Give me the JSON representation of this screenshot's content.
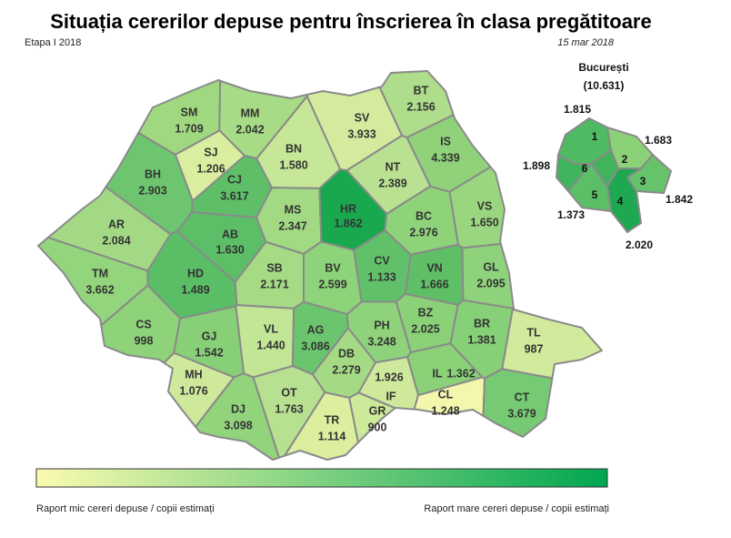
{
  "header": {
    "title": "Situația cererilor depuse pentru înscrierea în clasa pregătitoare",
    "stage": "Etapa I 2018",
    "date": "15 mar 2018"
  },
  "counties": [
    {
      "code": "SM",
      "value": "1.709",
      "color": "#9fd87f"
    },
    {
      "code": "MM",
      "value": "2.042",
      "color": "#a7db86"
    },
    {
      "code": "BT",
      "value": "2.156",
      "color": "#aedd8b"
    },
    {
      "code": "SV",
      "value": "3.933",
      "color": "#d4eb9e"
    },
    {
      "code": "SJ",
      "value": "1.206",
      "color": "#d9ee9f"
    },
    {
      "code": "BN",
      "value": "1.580",
      "color": "#c5e797"
    },
    {
      "code": "IS",
      "value": "4.339",
      "color": "#8fd27a"
    },
    {
      "code": "BH",
      "value": "2.903",
      "color": "#6dc66f"
    },
    {
      "code": "CJ",
      "value": "3.617",
      "color": "#5ebf68"
    },
    {
      "code": "NT",
      "value": "2.389",
      "color": "#b9e191"
    },
    {
      "code": "MS",
      "value": "2.347",
      "color": "#a2d983"
    },
    {
      "code": "HR",
      "value": "1.862",
      "color": "#19a84e"
    },
    {
      "code": "VS",
      "value": "1.650",
      "color": "#9ad67f"
    },
    {
      "code": "AR",
      "value": "2.084",
      "color": "#a3d984"
    },
    {
      "code": "AB",
      "value": "1.630",
      "color": "#5cbf68"
    },
    {
      "code": "BC",
      "value": "2.976",
      "color": "#8ed37a"
    },
    {
      "code": "TM",
      "value": "3.662",
      "color": "#93d57c"
    },
    {
      "code": "HD",
      "value": "1.489",
      "color": "#59be66"
    },
    {
      "code": "SB",
      "value": "2.171",
      "color": "#a6da85"
    },
    {
      "code": "BV",
      "value": "2.599",
      "color": "#8dd37a"
    },
    {
      "code": "CV",
      "value": "1.133",
      "color": "#61c16a"
    },
    {
      "code": "VN",
      "value": "1.666",
      "color": "#5ebf67"
    },
    {
      "code": "GL",
      "value": "2.095",
      "color": "#8ed27b"
    },
    {
      "code": "CS",
      "value": "998",
      "color": "#8ed37a"
    },
    {
      "code": "GJ",
      "value": "1.542",
      "color": "#88d077"
    },
    {
      "code": "VL",
      "value": "1.440",
      "color": "#c2e695"
    },
    {
      "code": "AG",
      "value": "3.086",
      "color": "#6bc56e"
    },
    {
      "code": "PH",
      "value": "3.248",
      "color": "#8ed27b"
    },
    {
      "code": "BZ",
      "value": "2.025",
      "color": "#8ad178"
    },
    {
      "code": "BR",
      "value": "1.381",
      "color": "#86d077"
    },
    {
      "code": "TL",
      "value": "987",
      "color": "#d1ea9c"
    },
    {
      "code": "MH",
      "value": "1.076",
      "color": "#cfe99c"
    },
    {
      "code": "DB",
      "value": "2.279",
      "color": "#a5da85"
    },
    {
      "code": "IL",
      "value": "1.362",
      "color": "#8ad178"
    },
    {
      "code": "IF",
      "value": "1.926",
      "color": "#cee99b"
    },
    {
      "code": "DJ",
      "value": "3.098",
      "color": "#92d47b"
    },
    {
      "code": "OT",
      "value": "1.763",
      "color": "#b7e090"
    },
    {
      "code": "TR",
      "value": "1.114",
      "color": "#dcef9f"
    },
    {
      "code": "GR",
      "value": "900",
      "color": "#cde99a"
    },
    {
      "code": "CL",
      "value": "1.248",
      "color": "#f2f7ad"
    },
    {
      "code": "CT",
      "value": "3.679",
      "color": "#76ca73"
    }
  ],
  "bucharest": {
    "name": "București",
    "total": "(10.631)",
    "sectors": [
      {
        "label": "1",
        "value": "1.815",
        "color": "#4fba62"
      },
      {
        "label": "2",
        "value": "1.683",
        "color": "#8bd178"
      },
      {
        "label": "3",
        "value": "1.842",
        "color": "#66c36c"
      },
      {
        "label": "4",
        "value": "2.020",
        "color": "#1ea851"
      },
      {
        "label": "5",
        "value": "1.373",
        "color": "#5cbf67"
      },
      {
        "label": "6",
        "value": "1.898",
        "color": "#40b45d"
      }
    ]
  },
  "legend": {
    "low": "Raport mic cereri depuse / copii estimați",
    "high": "Raport mare cereri depuse / copii estimați",
    "colors": [
      "#fbfbb0",
      "#00a651"
    ]
  }
}
